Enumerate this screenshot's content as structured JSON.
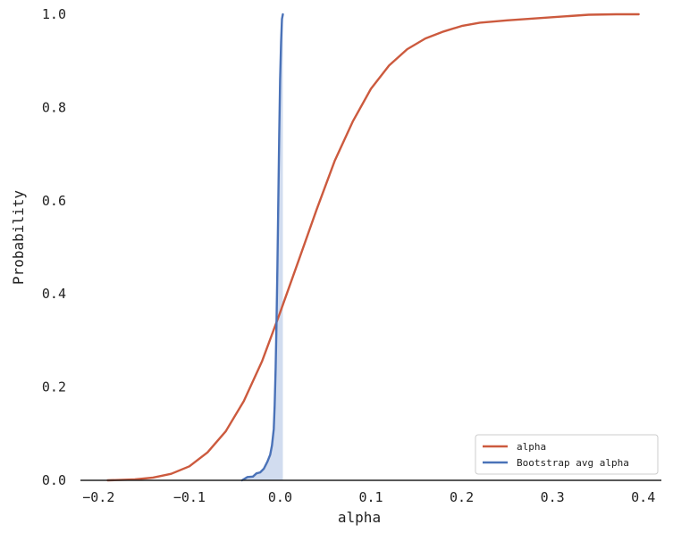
{
  "chart_data": {
    "type": "line",
    "xlabel": "alpha",
    "ylabel": "Probability",
    "xlim": [
      -0.22,
      0.42
    ],
    "ylim": [
      0.0,
      1.0
    ],
    "x_ticks": [
      -0.2,
      -0.1,
      0.0,
      0.1,
      0.2,
      0.3,
      0.4
    ],
    "x_tick_labels": [
      "−0.2",
      "−0.1",
      "0.0",
      "0.1",
      "0.2",
      "0.3",
      "0.4"
    ],
    "y_ticks": [
      0.0,
      0.2,
      0.4,
      0.6,
      0.8,
      1.0
    ],
    "y_tick_labels": [
      "0.0",
      "0.2",
      "0.4",
      "0.6",
      "0.8",
      "1.0"
    ],
    "grid": false,
    "legend_position": "bottom-right",
    "series": [
      {
        "name": "alpha",
        "color": "#cc5a3e",
        "fill": false,
        "x": [
          -0.19,
          -0.16,
          -0.14,
          -0.12,
          -0.1,
          -0.08,
          -0.06,
          -0.04,
          -0.02,
          0.0,
          0.02,
          0.04,
          0.06,
          0.08,
          0.1,
          0.12,
          0.14,
          0.16,
          0.18,
          0.2,
          0.22,
          0.25,
          0.28,
          0.31,
          0.34,
          0.37,
          0.395
        ],
        "y": [
          0.0,
          0.002,
          0.006,
          0.014,
          0.03,
          0.06,
          0.105,
          0.17,
          0.255,
          0.36,
          0.47,
          0.58,
          0.685,
          0.77,
          0.84,
          0.89,
          0.925,
          0.948,
          0.963,
          0.975,
          0.982,
          0.987,
          0.991,
          0.995,
          0.999,
          1.0,
          1.0
        ]
      },
      {
        "name": "Bootstrap avg alpha",
        "color": "#4a72b8",
        "fill": true,
        "fill_color": "#c9d6ec",
        "x": [
          -0.042,
          -0.036,
          -0.03,
          -0.026,
          -0.022,
          -0.018,
          -0.014,
          -0.011,
          -0.009,
          -0.007,
          -0.006,
          -0.005,
          -0.004,
          -0.003,
          -0.002,
          -0.001,
          0.0,
          0.001,
          0.002,
          0.003
        ],
        "y": [
          0.0,
          0.007,
          0.008,
          0.015,
          0.017,
          0.025,
          0.04,
          0.055,
          0.075,
          0.11,
          0.16,
          0.24,
          0.34,
          0.46,
          0.6,
          0.74,
          0.86,
          0.94,
          0.99,
          1.0
        ]
      }
    ]
  }
}
